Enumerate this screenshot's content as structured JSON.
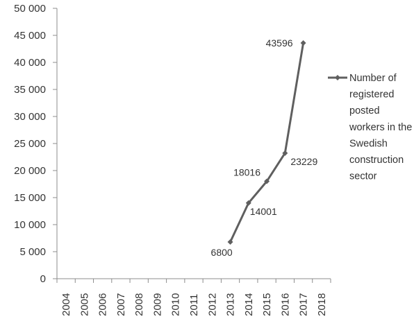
{
  "chart_data": {
    "type": "line",
    "categories": [
      "2004",
      "2005",
      "2006",
      "2007",
      "2008",
      "2009",
      "2010",
      "2011",
      "2012",
      "2013",
      "2014",
      "2015",
      "2016",
      "2017",
      "2018"
    ],
    "series": [
      {
        "name": "Number of registered posted workers in the Swedish construction sector",
        "values": [
          null,
          null,
          null,
          null,
          null,
          null,
          null,
          null,
          null,
          6800,
          14001,
          18016,
          23229,
          43596,
          null
        ],
        "data_labels": [
          "",
          "",
          "",
          "",
          "",
          "",
          "",
          "",
          "",
          "6800",
          "14001",
          "18016",
          "23229",
          "43596",
          ""
        ]
      }
    ],
    "y_ticks": [
      0,
      5000,
      10000,
      15000,
      20000,
      25000,
      30000,
      35000,
      40000,
      45000,
      50000
    ],
    "y_tick_labels": [
      "0",
      "5 000",
      "10 000",
      "15 000",
      "20 000",
      "25 000",
      "30 000",
      "35 000",
      "40 000",
      "45 000",
      "50 000"
    ],
    "ylim": [
      0,
      50000
    ],
    "grid": false,
    "legend_position": "right",
    "colors": {
      "series": "#5f5f5f",
      "axis": "#8c8c8c",
      "text": "#333333"
    }
  }
}
